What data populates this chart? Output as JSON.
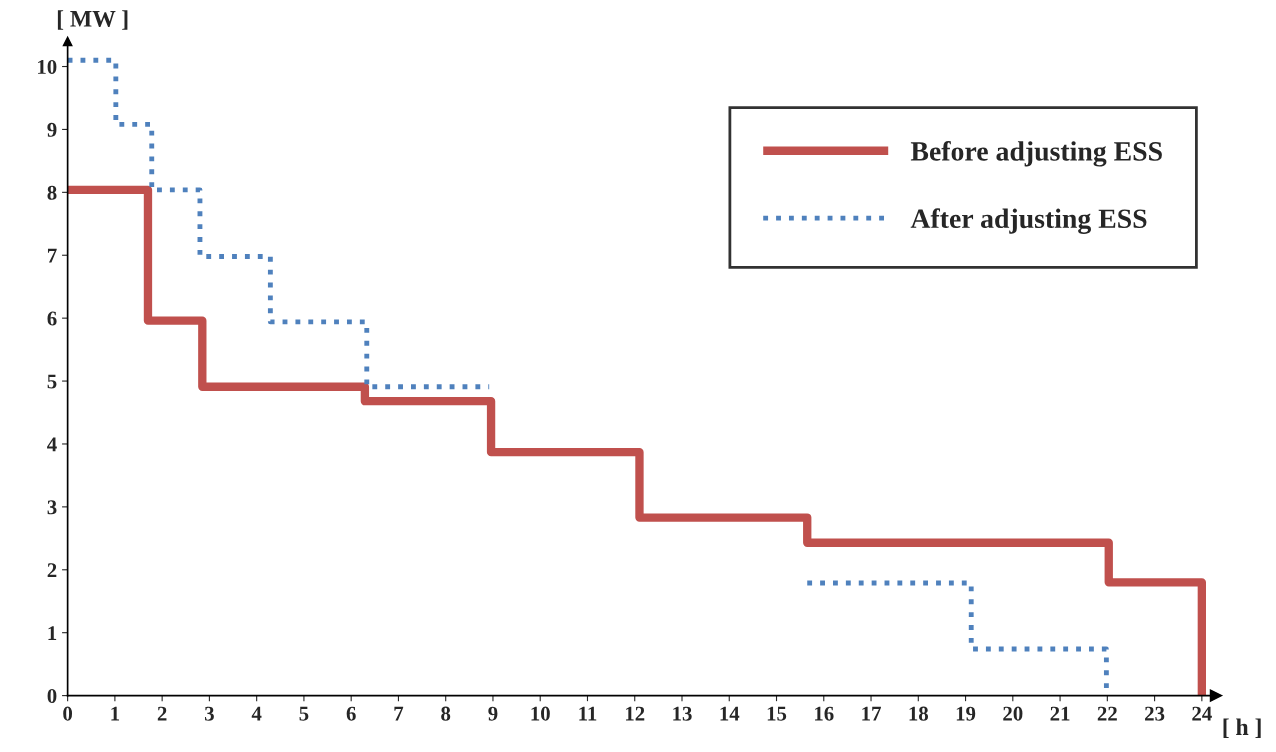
{
  "chart_data": {
    "type": "step",
    "xlabel": "[ h ]",
    "ylabel": "[ MW ]",
    "xlim": [
      0,
      24.3
    ],
    "ylim": [
      0,
      10.4
    ],
    "xticks": [
      0,
      1,
      2,
      3,
      4,
      5,
      6,
      7,
      8,
      9,
      10,
      11,
      12,
      13,
      14,
      15,
      16,
      17,
      18,
      19,
      20,
      21,
      22,
      23,
      24
    ],
    "yticks": [
      0,
      1,
      2,
      3,
      4,
      5,
      6,
      7,
      8,
      9,
      10
    ],
    "grid": false,
    "legend": "top right",
    "series": [
      {
        "name": "Before adjusting ESS",
        "color": "#c0504d",
        "line_style": "solid",
        "x": [
          0,
          1.7,
          2.85,
          6.29,
          8.96,
          12.1,
          15.65,
          22.03,
          24
        ],
        "values": [
          8.04,
          5.96,
          4.91,
          4.68,
          3.87,
          2.83,
          2.43,
          1.8,
          0
        ]
      },
      {
        "name": "After adjusting ESS",
        "color": "#4f81bd",
        "line_style": "dotted",
        "x": [
          0,
          1.02,
          1.78,
          2.8,
          4.29,
          6.33,
          8.92,
          12.1,
          15.65,
          19.12,
          21.98
        ],
        "values": [
          10.1,
          9.08,
          8.04,
          6.98,
          5.94,
          4.91,
          null,
          null,
          1.79,
          0.74,
          0
        ]
      }
    ]
  }
}
